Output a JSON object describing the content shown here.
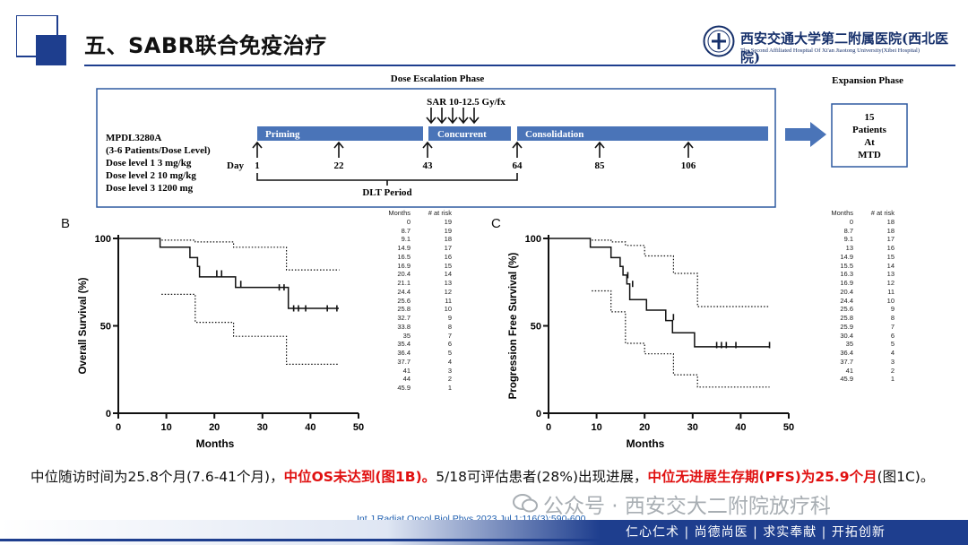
{
  "header": {
    "title": "五、SABR联合免疫治疗",
    "hospital_name_cn": "西安交通大学第二附属医院(西北医院)",
    "hospital_name_en": "The Second Affiliated Hospital Of Xi'an Jiaotong University(Xibei Hospital)"
  },
  "schema": {
    "dose_phase_label": "Dose Escalation Phase",
    "expansion_phase_label": "Expansion Phase",
    "drug": "MPDL3280A",
    "patients": "(3-6 Patients/Dose Level)",
    "dose_levels": [
      "Dose level  1    3 mg/kg",
      "Dose level  2  10 mg/kg",
      "Dose level  3  1200 mg"
    ],
    "sar_label": "SAR 10-12.5 Gy/fx",
    "phases": [
      "Priming",
      "Concurrent",
      "Consolidation"
    ],
    "day_label": "Day",
    "days": [
      "1",
      "22",
      "43",
      "64",
      "85",
      "106"
    ],
    "dlt_label": "DLT Period",
    "expansion_box": [
      "15",
      "Patients",
      "At",
      "MTD"
    ]
  },
  "chart_data": [
    {
      "type": "line",
      "panel_label": "B",
      "ylabel": "Overall Survival (%)",
      "xlabel": "Months",
      "xlim": [
        0,
        50
      ],
      "ylim": [
        0,
        100
      ],
      "xticks": [
        0,
        10,
        20,
        30,
        40,
        50
      ],
      "yticks": [
        0,
        50,
        100
      ],
      "series": [
        {
          "name": "",
          "step": true,
          "x": [
            0,
            8.7,
            8.7,
            14.9,
            14.9,
            16.5,
            16.5,
            16.9,
            16.9,
            24.4,
            24.4,
            35.4,
            35.4,
            45.9
          ],
          "y": [
            100,
            100,
            95,
            95,
            89,
            89,
            84,
            84,
            78,
            78,
            72,
            72,
            60,
            60
          ]
        },
        {
          "name": "",
          "step": true,
          "dotted": true,
          "x": [
            9,
            9,
            16,
            16,
            24,
            24,
            35,
            35,
            46
          ],
          "y": [
            99,
            99,
            99,
            98,
            98,
            95,
            95,
            82,
            82
          ]
        },
        {
          "name": "",
          "step": true,
          "dotted": true,
          "x": [
            9,
            9,
            16,
            16,
            24,
            24,
            35,
            35,
            46
          ],
          "y": [
            68,
            68,
            68,
            52,
            52,
            44,
            44,
            28,
            28
          ]
        }
      ],
      "censored": {
        "x": [
          20.5,
          21.5,
          25.5,
          33.5,
          34.5,
          36.5,
          37.5,
          39,
          43.5,
          45.5
        ],
        "y": [
          80,
          80,
          74,
          72,
          72,
          60,
          60,
          60,
          60,
          60
        ]
      },
      "risk_table": {
        "headers": [
          "Months",
          "# at risk"
        ],
        "rows": [
          [
            "0",
            "19"
          ],
          [
            "8.7",
            "19"
          ],
          [
            "9.1",
            "18"
          ],
          [
            "14.9",
            "17"
          ],
          [
            "16.5",
            "16"
          ],
          [
            "16.9",
            "15"
          ],
          [
            "20.4",
            "14"
          ],
          [
            "21.1",
            "13"
          ],
          [
            "24.4",
            "12"
          ],
          [
            "25.6",
            "11"
          ],
          [
            "25.8",
            "10"
          ],
          [
            "32.7",
            "9"
          ],
          [
            "33.8",
            "8"
          ],
          [
            "35",
            "7"
          ],
          [
            "35.4",
            "6"
          ],
          [
            "36.4",
            "5"
          ],
          [
            "37.7",
            "4"
          ],
          [
            "41",
            "3"
          ],
          [
            "44",
            "2"
          ],
          [
            "45.9",
            "1"
          ]
        ]
      }
    },
    {
      "type": "line",
      "panel_label": "C",
      "ylabel": "Progression Free Survival (%)",
      "xlabel": "Months",
      "xlim": [
        0,
        50
      ],
      "ylim": [
        0,
        100
      ],
      "xticks": [
        0,
        10,
        20,
        30,
        40,
        50
      ],
      "yticks": [
        0,
        50,
        100
      ],
      "series": [
        {
          "name": "",
          "step": true,
          "x": [
            0,
            8.7,
            8.7,
            13,
            13,
            14.9,
            14.9,
            15.5,
            15.5,
            16.3,
            16.3,
            16.9,
            16.9,
            20.4,
            20.4,
            24.4,
            24.4,
            25.8,
            25.8,
            30.4,
            30.4,
            45.9
          ],
          "y": [
            100,
            100,
            95,
            95,
            89,
            89,
            84,
            84,
            79,
            79,
            74,
            74,
            65,
            65,
            59,
            59,
            53,
            53,
            46,
            46,
            38,
            38
          ]
        },
        {
          "name": "",
          "step": true,
          "dotted": true,
          "x": [
            9,
            9,
            13,
            13,
            16,
            16,
            20,
            20,
            26,
            26,
            31,
            31,
            46
          ],
          "y": [
            99,
            99,
            99,
            98,
            98,
            96,
            96,
            90,
            90,
            80,
            80,
            61,
            61
          ]
        },
        {
          "name": "",
          "step": true,
          "dotted": true,
          "x": [
            9,
            9,
            13,
            13,
            16,
            16,
            20,
            20,
            26,
            26,
            31,
            31,
            46
          ],
          "y": [
            70,
            70,
            70,
            58,
            58,
            40,
            40,
            34,
            34,
            22,
            22,
            15,
            15
          ]
        }
      ],
      "censored": {
        "x": [
          16.5,
          17.5,
          26,
          35,
          36,
          37,
          39,
          46
        ],
        "y": [
          79,
          74,
          55,
          39,
          39,
          39,
          39,
          39
        ]
      },
      "risk_table": {
        "headers": [
          "Months",
          "# at risk"
        ],
        "rows": [
          [
            "0",
            "18"
          ],
          [
            "8.7",
            "18"
          ],
          [
            "9.1",
            "17"
          ],
          [
            "13",
            "16"
          ],
          [
            "14.9",
            "15"
          ],
          [
            "15.5",
            "14"
          ],
          [
            "16.3",
            "13"
          ],
          [
            "16.9",
            "12"
          ],
          [
            "20.4",
            "11"
          ],
          [
            "24.4",
            "10"
          ],
          [
            "25.6",
            "9"
          ],
          [
            "25.8",
            "8"
          ],
          [
            "25.9",
            "7"
          ],
          [
            "30.4",
            "6"
          ],
          [
            "35",
            "5"
          ],
          [
            "36.4",
            "4"
          ],
          [
            "37.7",
            "3"
          ],
          [
            "41",
            "2"
          ],
          [
            "45.9",
            "1"
          ]
        ]
      }
    }
  ],
  "summary": {
    "part1": "中位随访时间为25.8个月(7.6-41个月)，",
    "part2": "中位OS未达到(图1B)。",
    "part3": "5/18可评估患者(28%)出现进展，",
    "part4": "中位无进展生存期(PFS)为25.9个月",
    "part5": "(图1C)。"
  },
  "watermark": "公众号 · 西安交大二附院放疗科",
  "citation": "Int J Radiat Oncol Biol Phys.2023 Jul 1;116(3):590-600.",
  "footer": {
    "motto": "仁心仁术 | 尚德尚医 | 求实奉献 | 开拓创新"
  },
  "colors": {
    "brand_navy": "#1e3e8e",
    "phase_bar": "#4a74b8",
    "highlight_red": "#e01010"
  }
}
